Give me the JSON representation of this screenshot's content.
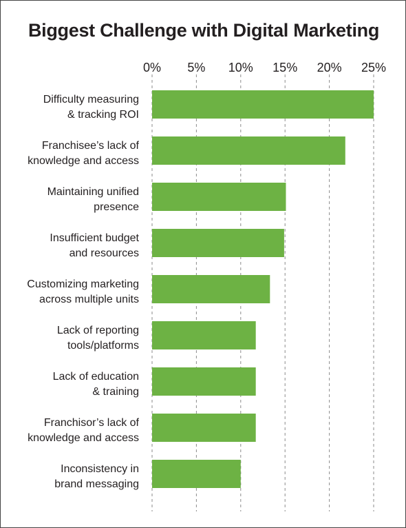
{
  "chart_data": {
    "type": "bar",
    "orientation": "horizontal",
    "title": "Biggest Challenge with Digital Marketing",
    "xlabel": "",
    "ylabel": "",
    "xlim": [
      0,
      25
    ],
    "ticks": [
      0,
      5,
      10,
      15,
      20,
      25
    ],
    "tick_labels": [
      "0%",
      "5%",
      "10%",
      "15%",
      "20%",
      "25%"
    ],
    "tick_position": "top",
    "grid": "vertical-dashed",
    "bar_color": "#6db244",
    "categories": [
      [
        "Difficulty measuring",
        "& tracking ROI"
      ],
      [
        "Franchisee’s lack of",
        "knowledge and access"
      ],
      [
        "Maintaining unified",
        "presence"
      ],
      [
        "Insufficient budget",
        "and resources"
      ],
      [
        "Customizing marketing",
        "across multiple units"
      ],
      [
        "Lack of reporting",
        "tools/platforms"
      ],
      [
        "Lack of education",
        "& training"
      ],
      [
        "Franchisor’s lack of",
        "knowledge and access"
      ],
      [
        "Inconsistency in",
        "brand messaging"
      ]
    ],
    "values": [
      25,
      21.8,
      15.1,
      14.9,
      13.3,
      11.7,
      11.7,
      11.7,
      10
    ]
  }
}
